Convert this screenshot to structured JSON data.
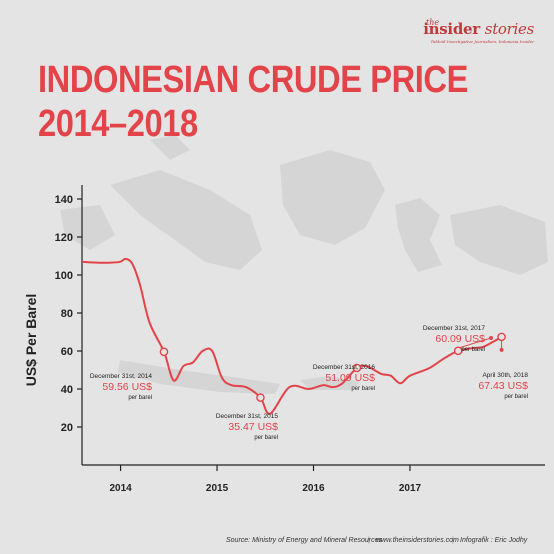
{
  "brand": {
    "prefix": "the",
    "name_a": "insider ",
    "name_b": "stories",
    "tagline": "Tabloid Investigative Journalism, Indonesia Insider"
  },
  "title": {
    "line1": "INDONESIAN CRUDE PRICE",
    "line2": "2014–2018"
  },
  "footer": {
    "source": "Source: Ministry of Energy and Mineral Resources",
    "website": "www.theinsiderstories.com",
    "credit": "Infografik : Eric Jodhy",
    "separator": "|"
  },
  "colors": {
    "line": "#e2444a",
    "accent": "#e2444a",
    "axis": "#222222",
    "map": "#d5d5d5",
    "background": "#e4e4e4"
  },
  "chart_data": {
    "type": "line",
    "ylabel": "US$ Per Barel",
    "xlabel": "",
    "ylim": [
      0,
      140
    ],
    "yticks": [
      20,
      40,
      60,
      80,
      100,
      120,
      140
    ],
    "xlim": [
      2013.6,
      2018.4
    ],
    "xticks": [
      {
        "label": "2014",
        "value": 2014
      },
      {
        "label": "2015",
        "value": 2015
      },
      {
        "label": "2016",
        "value": 2016
      },
      {
        "label": "2017",
        "value": 2017
      }
    ],
    "grid": false,
    "series": [
      {
        "x": [
          2013.6,
          2013.75,
          2013.9,
          2014.0,
          2014.05,
          2014.12,
          2014.2,
          2014.3,
          2014.45,
          2014.55,
          2014.65,
          2014.75,
          2014.85,
          2014.95,
          2015.05,
          2015.15,
          2015.3,
          2015.45,
          2015.55,
          2015.75,
          2015.95,
          2016.1,
          2016.2,
          2016.3,
          2016.45,
          2016.55,
          2016.7,
          2016.8,
          2016.9,
          2017.0,
          2017.2,
          2017.35,
          2017.5,
          2017.65,
          2017.75,
          2017.85,
          2017.95
        ],
        "y": [
          107,
          106.5,
          106.5,
          107,
          108.5,
          106,
          95,
          75,
          59.56,
          44.5,
          52,
          54,
          60,
          60,
          46,
          42,
          41,
          35.47,
          27,
          41,
          40,
          42,
          41,
          43,
          51.09,
          52,
          48,
          47,
          43,
          47,
          51,
          56,
          60.09,
          61.5,
          62,
          64.5,
          67.43
        ]
      }
    ],
    "annotations": [
      {
        "date": "December 31st, 2014",
        "value": "59.56 US$",
        "unit": "per barel",
        "x": 2014.45,
        "y": 59.56
      },
      {
        "date": "December 31st, 2015",
        "value": "35.47 US$",
        "unit": "per barel",
        "x": 2015.45,
        "y": 35.47
      },
      {
        "date": "December 31st, 2016",
        "value": "51.09 US$",
        "unit": "per barel",
        "x": 2016.45,
        "y": 51.09
      },
      {
        "date": "December 31st, 2017",
        "value": "60.09 US$",
        "unit": "per barel",
        "x": 2017.5,
        "y": 60.09
      },
      {
        "date": "April 30th, 2018",
        "value": "67.43 US$",
        "unit": "per barel",
        "x": 2017.95,
        "y": 67.43
      }
    ]
  }
}
